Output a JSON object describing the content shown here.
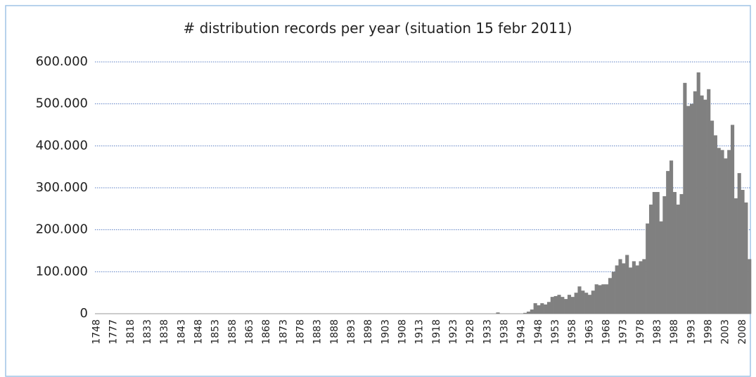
{
  "chart_data": {
    "type": "bar",
    "title": "#  distribution records per year (situation 15 febr 2011)",
    "categories": [
      "1748",
      null,
      null,
      null,
      null,
      "1777",
      null,
      null,
      null,
      null,
      "1818",
      null,
      null,
      null,
      null,
      "1833",
      null,
      null,
      null,
      null,
      "1838",
      null,
      null,
      null,
      null,
      "1843",
      null,
      null,
      null,
      null,
      "1848",
      null,
      null,
      null,
      null,
      "1853",
      null,
      null,
      null,
      null,
      "1858",
      null,
      null,
      null,
      null,
      "1863",
      null,
      null,
      null,
      null,
      "1868",
      null,
      null,
      null,
      null,
      "1873",
      null,
      null,
      null,
      null,
      "1878",
      null,
      null,
      null,
      null,
      "1883",
      null,
      null,
      null,
      null,
      "1888",
      null,
      null,
      null,
      null,
      "1893",
      null,
      null,
      null,
      null,
      "1898",
      null,
      null,
      null,
      null,
      "1903",
      null,
      null,
      null,
      null,
      "1908",
      null,
      null,
      null,
      null,
      "1913",
      null,
      null,
      null,
      null,
      "1918",
      null,
      null,
      null,
      null,
      "1923",
      null,
      null,
      null,
      null,
      "1928",
      null,
      null,
      null,
      null,
      "1933",
      null,
      null,
      null,
      null,
      "1938",
      null,
      null,
      null,
      null,
      "1943",
      null,
      null,
      null,
      null,
      "1948",
      null,
      null,
      null,
      null,
      "1953",
      null,
      null,
      null,
      null,
      "1958",
      null,
      null,
      null,
      null,
      "1963",
      null,
      null,
      null,
      null,
      "1968",
      null,
      null,
      null,
      null,
      "1973",
      null,
      null,
      null,
      null,
      "1978",
      null,
      null,
      null,
      null,
      "1983",
      null,
      null,
      null,
      null,
      "1988",
      null,
      null,
      null,
      null,
      "1993",
      null,
      null,
      null,
      null,
      "1998",
      null,
      null,
      null,
      null,
      "2003",
      null,
      null,
      null,
      null,
      "2008",
      null,
      null
    ],
    "values": [
      0,
      0,
      0,
      0,
      0,
      0,
      0,
      0,
      0,
      0,
      0,
      0,
      0,
      0,
      0,
      0,
      0,
      0,
      0,
      0,
      0,
      0,
      0,
      0,
      0,
      0,
      0,
      0,
      0,
      0,
      0,
      0,
      0,
      0,
      0,
      0,
      0,
      0,
      0,
      0,
      0,
      0,
      0,
      0,
      0,
      0,
      0,
      0,
      0,
      0,
      0,
      0,
      0,
      0,
      0,
      0,
      0,
      0,
      0,
      0,
      0,
      0,
      0,
      0,
      0,
      0,
      0,
      0,
      0,
      0,
      0,
      0,
      0,
      0,
      0,
      0,
      0,
      0,
      0,
      0,
      0,
      0,
      0,
      0,
      0,
      0,
      0,
      0,
      0,
      0,
      0,
      0,
      0,
      0,
      0,
      0,
      0,
      0,
      0,
      0,
      0,
      0,
      0,
      0,
      0,
      0,
      0,
      0,
      0,
      0,
      0,
      0,
      0,
      0,
      0,
      0,
      0,
      0,
      3000,
      0,
      0,
      0,
      0,
      0,
      0,
      0,
      2000,
      5000,
      10000,
      25000,
      20000,
      25000,
      22000,
      28000,
      40000,
      42000,
      45000,
      40000,
      35000,
      45000,
      40000,
      50000,
      65000,
      55000,
      50000,
      45000,
      55000,
      70000,
      68000,
      70000,
      70000,
      85000,
      100000,
      115000,
      130000,
      120000,
      140000,
      110000,
      125000,
      115000,
      125000,
      130000,
      215000,
      260000,
      290000,
      290000,
      220000,
      280000,
      340000,
      365000,
      290000,
      260000,
      285000,
      550000,
      495000,
      500000,
      530000,
      575000,
      520000,
      510000,
      535000,
      460000,
      425000,
      395000,
      390000,
      370000,
      390000,
      450000,
      275000,
      335000,
      295000,
      265000,
      130000
    ],
    "color": "#808080",
    "ylim": [
      0,
      600000
    ],
    "yticks": [
      0,
      {
        "value": 100000,
        "label": "100.000"
      },
      {
        "value": 200000,
        "label": "200.000"
      },
      {
        "value": 300000,
        "label": "300.000"
      },
      {
        "value": 400000,
        "label": "400.000"
      },
      {
        "value": 500000,
        "label": "500.000"
      },
      {
        "value": 600000,
        "label": "600.000"
      }
    ],
    "grid": true
  }
}
